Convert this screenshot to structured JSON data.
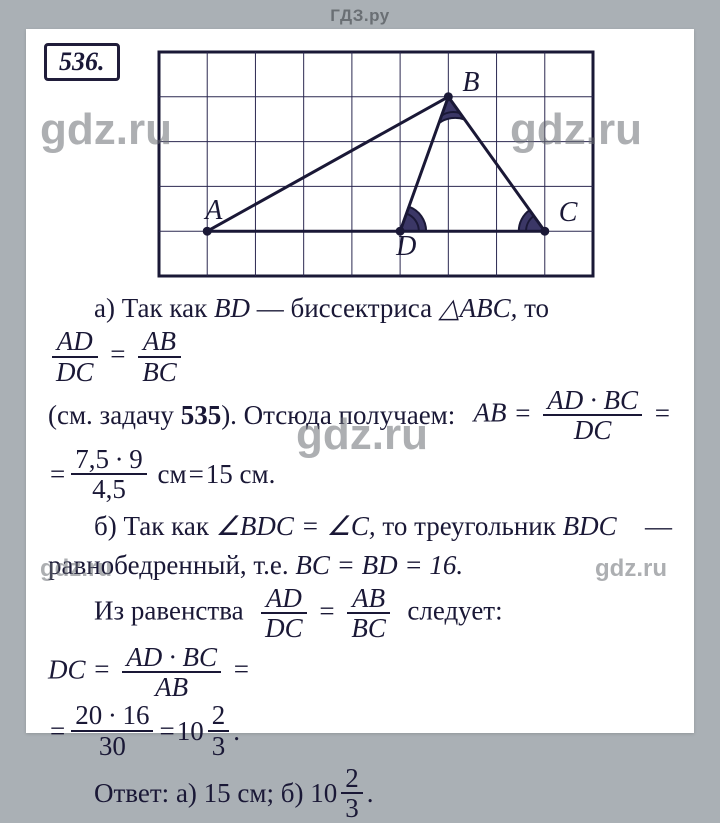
{
  "header": "ГДЗ.ру",
  "watermarks": [
    "gdz.ru",
    "gdz.ru",
    "gdz.ru",
    "gdz.ru",
    "gdz.ru"
  ],
  "problem_number": "536.",
  "figure": {
    "grid": {
      "cols": 9,
      "rows": 5,
      "stroke": "#2b2850",
      "stroke_width": 1
    },
    "border_width": 3,
    "points": {
      "A": {
        "gx": 1,
        "gy": 4,
        "label": "A",
        "label_dx": -2,
        "label_dy": -12
      },
      "B": {
        "gx": 6,
        "gy": 1,
        "label": "B",
        "label_dx": 14,
        "label_dy": -6
      },
      "C": {
        "gx": 8,
        "gy": 4,
        "label": "C",
        "label_dx": 14,
        "label_dy": -10
      },
      "D": {
        "gx": 5,
        "gy": 4,
        "label": "D",
        "label_dx": -4,
        "label_dy": 24
      }
    },
    "segments": [
      [
        "A",
        "B"
      ],
      [
        "B",
        "C"
      ],
      [
        "A",
        "C"
      ],
      [
        "B",
        "D"
      ]
    ],
    "angle_fill": "#3b3766"
  },
  "part_a": {
    "lead": "а) Так как",
    "seg": "BD",
    "dash": "—",
    "bisector": "биссектриса",
    "tri": "△ABC,",
    "to": "то",
    "ratio": {
      "num": "AD",
      "den": "DC"
    },
    "eq_ratio": {
      "num": "AB",
      "den": "BC"
    },
    "see": "(см. задачу",
    "ref": "535",
    "after_ref": "). Отсюда получаем:",
    "ab": "AB",
    "expr": {
      "num": "AD · BC",
      "den": "DC"
    },
    "numeric": {
      "num": "7,5 ∙ 9",
      "den": "4,5"
    },
    "unit": "см",
    "result": "15 см."
  },
  "part_b": {
    "lead": "б) Так как",
    "ang1": "∠BDC",
    "ang2": "∠C,",
    "then": "то треугольник",
    "tri": "BDC",
    "dash": "—",
    "isos": "равнобедренный, т.е.",
    "eq_sides": "BC = BD = 16.",
    "from": "Из равенства",
    "ratio": {
      "num": "AD",
      "den": "DC"
    },
    "eq_ratio": {
      "num": "AB",
      "den": "BC"
    },
    "follows": "следует:",
    "dc": "DC",
    "expr": {
      "num": "AD · BC",
      "den": "AB"
    },
    "numeric": {
      "num": "20 ∙ 16",
      "den": "30"
    },
    "mixed_int": "10",
    "mixed": {
      "num": "2",
      "den": "3"
    }
  },
  "answer": {
    "label": "Ответ:",
    "a": "а) 15 см;",
    "b_pre": "б)",
    "b_int": "10",
    "b_frac": {
      "num": "2",
      "den": "3"
    },
    "dot": "."
  }
}
